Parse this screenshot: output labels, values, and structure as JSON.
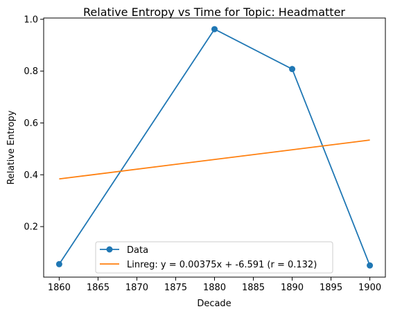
{
  "chart_data": {
    "type": "line",
    "title": "Relative Entropy vs Time for Topic: Headmatter",
    "xlabel": "Decade",
    "ylabel": "Relative Entropy",
    "xlim": [
      1858,
      1902
    ],
    "ylim": [
      0.005,
      1.005
    ],
    "x_ticks": [
      1860,
      1865,
      1870,
      1875,
      1880,
      1885,
      1890,
      1895,
      1900
    ],
    "y_ticks": [
      0.2,
      0.4,
      0.6,
      0.8,
      1.0
    ],
    "y_tick_labels": [
      "0.2",
      "0.4",
      "0.6",
      "0.8",
      "1.0"
    ],
    "grid": false,
    "legend_position": "bottom-center",
    "series": [
      {
        "name": "Data",
        "type": "line-marker",
        "color": "#1f77b4",
        "x": [
          1860,
          1880,
          1890,
          1900
        ],
        "y": [
          0.055,
          0.962,
          0.808,
          0.05
        ]
      },
      {
        "name": "Linreg: y = 0.00375x + -6.591 (r = 0.132)",
        "type": "line",
        "color": "#ff7f0e",
        "x": [
          1860,
          1900
        ],
        "y": [
          0.384,
          0.534
        ]
      }
    ]
  }
}
